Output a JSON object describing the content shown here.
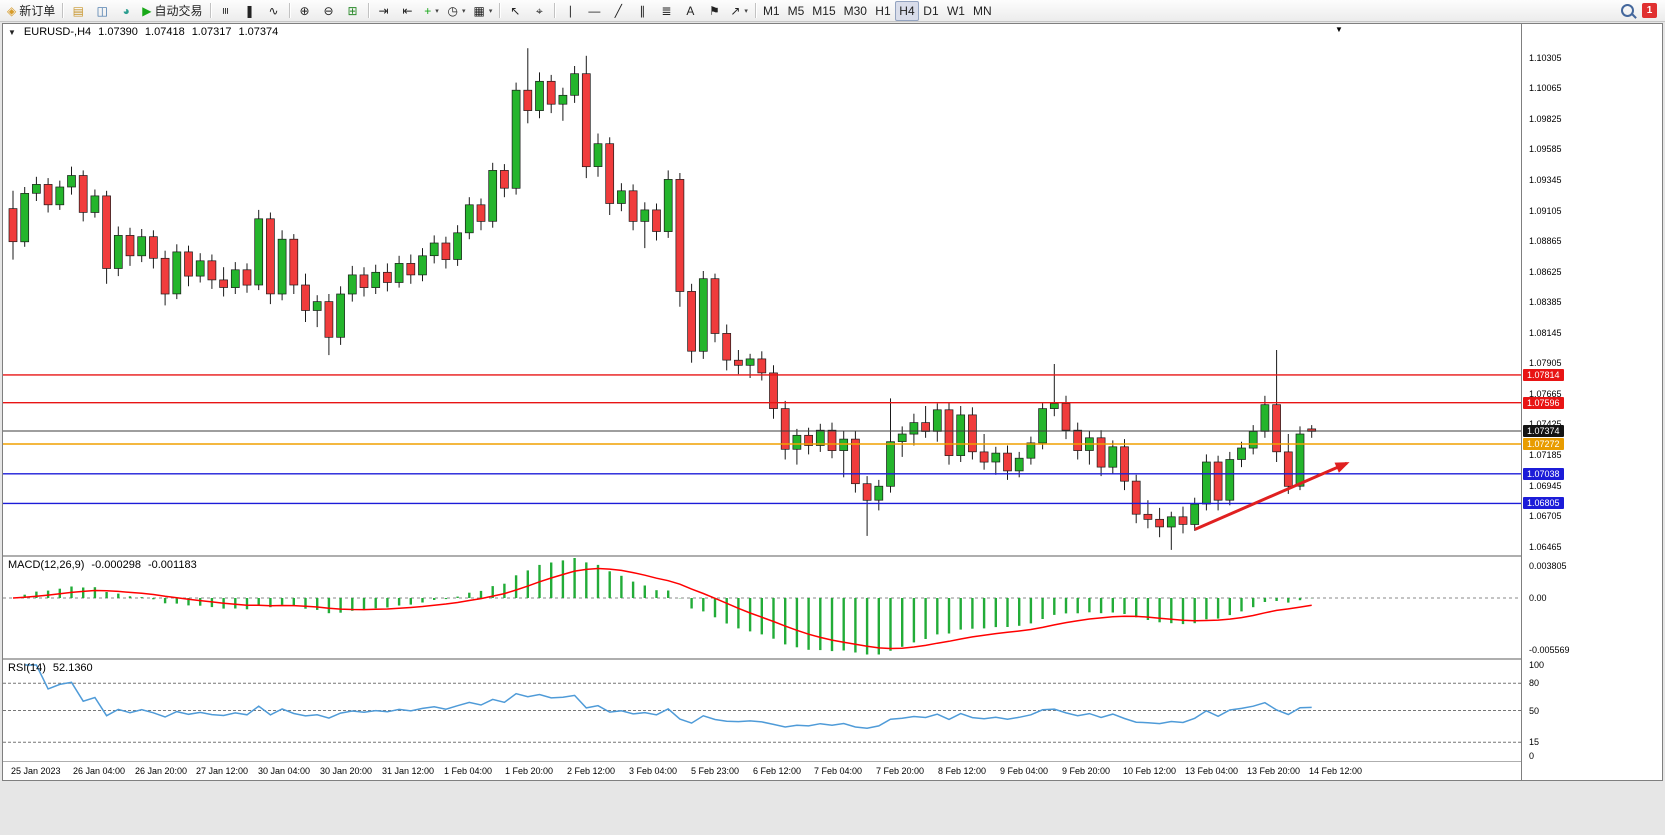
{
  "toolbar": {
    "groups": [
      {
        "items": [
          {
            "name": "new-order-button",
            "glyph": "◈",
            "color": "#d79b28",
            "label": "新订单"
          }
        ]
      },
      {
        "items": [
          {
            "name": "market-watch-button",
            "glyph": "▤",
            "color": "#c8962e"
          },
          {
            "name": "data-window-button",
            "glyph": "◫",
            "color": "#3a6ea5"
          },
          {
            "name": "navigator-button",
            "glyph": "◕",
            "color": "#2a9d8f"
          },
          {
            "name": "auto-trading-button",
            "glyph": "▶",
            "color": "#18a818",
            "label": "自动交易"
          }
        ]
      },
      {
        "items": [
          {
            "name": "bar-chart-button",
            "glyph": "≡"
          },
          {
            "name": "candlestick-chart-button",
            "glyph": "❚"
          },
          {
            "name": "line-chart-button",
            "glyph": "∿"
          }
        ]
      },
      {
        "items": [
          {
            "name": "zoom-in-button",
            "glyph": "⊕"
          },
          {
            "name": "zoom-out-button",
            "glyph": "⊖"
          },
          {
            "name": "tile-windows-button",
            "glyph": "⊞",
            "color": "#2a8a2a"
          }
        ]
      },
      {
        "items": [
          {
            "name": "auto-scroll-button",
            "glyph": "⇥"
          },
          {
            "name": "chart-shift-button",
            "glyph": "⇤"
          },
          {
            "name": "indicators-button",
            "glyph": "+",
            "color": "#18a818",
            "dropdown": true
          },
          {
            "name": "periods-button",
            "glyph": "◷",
            "dropdown": true
          },
          {
            "name": "templates-button",
            "glyph": "▦",
            "dropdown": true
          }
        ]
      },
      {
        "items": [
          {
            "name": "cursor-button",
            "glyph": "↖"
          },
          {
            "name": "crosshair-button",
            "glyph": "⌖"
          }
        ]
      },
      {
        "items": [
          {
            "name": "vertical-line-button",
            "glyph": "∣"
          },
          {
            "name": "horizontal-line-button",
            "glyph": "―"
          },
          {
            "name": "trendline-button",
            "glyph": "╱"
          },
          {
            "name": "channel-button",
            "glyph": "∥"
          },
          {
            "name": "fibonacci-button",
            "glyph": "≣"
          },
          {
            "name": "text-button",
            "glyph": "A"
          },
          {
            "name": "label-button",
            "glyph": "⚑"
          },
          {
            "name": "arrows-button",
            "glyph": "↗",
            "dropdown": true
          }
        ]
      }
    ],
    "timeframes": [
      {
        "label": "M1"
      },
      {
        "label": "M5"
      },
      {
        "label": "M15"
      },
      {
        "label": "M30"
      },
      {
        "label": "H1"
      },
      {
        "label": "H4",
        "active": true
      },
      {
        "label": "D1"
      },
      {
        "label": "W1"
      },
      {
        "label": "MN"
      }
    ],
    "right": {
      "badge_count": "1"
    }
  },
  "chart": {
    "expander_glyph": "▼",
    "scroll_marker_glyph": "▼",
    "header": {
      "symbol": "EURUSD-,H4",
      "open": "1.07390",
      "high": "1.07418",
      "low": "1.07317",
      "close": "1.07374"
    },
    "macd_header": {
      "title": "MACD(12,26,9)",
      "main_value": "-0.000298",
      "signal_value": "-0.001183"
    },
    "rsi_header": {
      "title": "RSI(14)",
      "value": "52.1360"
    },
    "price_axis_labels": [
      "1.10305",
      "1.10065",
      "1.09825",
      "1.09585",
      "1.09345",
      "1.09105",
      "1.08865",
      "1.08625",
      "1.08385",
      "1.08145",
      "1.07905",
      "1.07665",
      "1.07425",
      "1.07185",
      "1.06945",
      "1.06705",
      "1.06465"
    ],
    "time_axis_labels": [
      "25 Jan 2023",
      "26 Jan 04:00",
      "26 Jan 20:00",
      "27 Jan 12:00",
      "30 Jan 04:00",
      "30 Jan 20:00",
      "31 Jan 12:00",
      "1 Feb 04:00",
      "1 Feb 20:00",
      "2 Feb 12:00",
      "3 Feb 04:00",
      "5 Feb 23:00",
      "6 Feb 12:00",
      "7 Feb 04:00",
      "7 Feb 20:00",
      "8 Feb 12:00",
      "9 Feb 04:00",
      "9 Feb 20:00",
      "10 Feb 12:00",
      "13 Feb 04:00",
      "13 Feb 20:00",
      "14 Feb 12:00"
    ],
    "levels": [
      {
        "label": "1.07814",
        "price": 1.07814,
        "color": "#e81414",
        "badge": "#e81414"
      },
      {
        "label": "1.07596",
        "price": 1.07596,
        "color": "#e81414",
        "badge": "#e81414"
      },
      {
        "label": "1.07272",
        "price": 1.07272,
        "color": "#f0a000",
        "badge": "#e89c00"
      },
      {
        "label": "1.07038",
        "price": 1.07038,
        "color": "#1c1cd8",
        "badge": "#1c1cd8"
      },
      {
        "label": "1.06805",
        "price": 1.06805,
        "color": "#1c1cd8",
        "badge": "#1c1cd8"
      },
      {
        "label": "1.07374",
        "price": 1.07374,
        "color": "#3c3c3c",
        "badge": "#141414",
        "is_bid": true
      }
    ],
    "annotation_arrow": {
      "x1_index": 101,
      "y1_price": 1.066,
      "x2_index": 114,
      "y2_price": 1.0712,
      "color": "#e02020"
    }
  },
  "chart_data": {
    "type": "candlestick",
    "symbol": "EURUSD-",
    "timeframe": "H4",
    "price_max": 1.1057,
    "price_min": 1.064,
    "up_color": "#24b52c",
    "down_color": "#f03c3c",
    "candles": [
      [
        1.0912,
        1.0926,
        1.0872,
        1.0886
      ],
      [
        1.0886,
        1.0929,
        1.0882,
        1.0924
      ],
      [
        1.0924,
        1.0937,
        1.0918,
        1.0931
      ],
      [
        1.0931,
        1.0936,
        1.0909,
        1.0915
      ],
      [
        1.0915,
        1.0934,
        1.0911,
        1.0929
      ],
      [
        1.0929,
        1.0945,
        1.0923,
        1.0938
      ],
      [
        1.0938,
        1.0942,
        1.0902,
        1.0909
      ],
      [
        1.0909,
        1.0927,
        1.0905,
        1.0922
      ],
      [
        1.0922,
        1.0926,
        1.0853,
        1.0865
      ],
      [
        1.0865,
        1.0898,
        1.0859,
        1.0891
      ],
      [
        1.0891,
        1.0897,
        1.0867,
        1.0875
      ],
      [
        1.0875,
        1.0896,
        1.087,
        1.089
      ],
      [
        1.089,
        1.0895,
        1.0865,
        1.0873
      ],
      [
        1.0873,
        1.0879,
        1.0836,
        1.0845
      ],
      [
        1.0845,
        1.0884,
        1.0841,
        1.0878
      ],
      [
        1.0878,
        1.0883,
        1.0851,
        1.0859
      ],
      [
        1.0859,
        1.0877,
        1.0854,
        1.0871
      ],
      [
        1.0871,
        1.0876,
        1.0849,
        1.0856
      ],
      [
        1.0856,
        1.0866,
        1.0843,
        1.085
      ],
      [
        1.085,
        1.087,
        1.0845,
        1.0864
      ],
      [
        1.0864,
        1.0869,
        1.0846,
        1.0852
      ],
      [
        1.0852,
        1.0911,
        1.0848,
        1.0904
      ],
      [
        1.0904,
        1.0909,
        1.0837,
        1.0845
      ],
      [
        1.0845,
        1.0895,
        1.084,
        1.0888
      ],
      [
        1.0888,
        1.0892,
        1.0845,
        1.0852
      ],
      [
        1.0852,
        1.0861,
        1.0823,
        1.0832
      ],
      [
        1.0832,
        1.0844,
        1.0819,
        1.0839
      ],
      [
        1.0839,
        1.0845,
        1.0797,
        1.0811
      ],
      [
        1.0811,
        1.0851,
        1.0805,
        1.0845
      ],
      [
        1.0845,
        1.0867,
        1.0839,
        1.086
      ],
      [
        1.086,
        1.0866,
        1.0843,
        1.085
      ],
      [
        1.085,
        1.0868,
        1.0845,
        1.0862
      ],
      [
        1.0862,
        1.0869,
        1.0847,
        1.0854
      ],
      [
        1.0854,
        1.0875,
        1.085,
        1.0869
      ],
      [
        1.0869,
        1.0876,
        1.0853,
        1.086
      ],
      [
        1.086,
        1.0881,
        1.0855,
        1.0875
      ],
      [
        1.0875,
        1.0891,
        1.0869,
        1.0885
      ],
      [
        1.0885,
        1.089,
        1.0865,
        1.0872
      ],
      [
        1.0872,
        1.0899,
        1.0867,
        1.0893
      ],
      [
        1.0893,
        1.0921,
        1.0888,
        1.0915
      ],
      [
        1.0915,
        1.092,
        1.0895,
        1.0902
      ],
      [
        1.0902,
        1.0948,
        1.0897,
        1.0942
      ],
      [
        1.0942,
        1.0947,
        1.0921,
        1.0928
      ],
      [
        1.0928,
        1.1011,
        1.0923,
        1.1005
      ],
      [
        1.1005,
        1.1038,
        1.0979,
        1.0989
      ],
      [
        1.0989,
        1.1019,
        1.0983,
        1.1012
      ],
      [
        1.1012,
        1.1017,
        1.0987,
        1.0994
      ],
      [
        1.0994,
        1.1007,
        1.0981,
        1.1001
      ],
      [
        1.1001,
        1.1024,
        1.0995,
        1.1018
      ],
      [
        1.1018,
        1.1032,
        1.0936,
        1.0945
      ],
      [
        1.0945,
        1.0971,
        1.0937,
        1.0963
      ],
      [
        1.0963,
        1.0968,
        1.0907,
        1.0916
      ],
      [
        1.0916,
        1.0932,
        1.091,
        1.0926
      ],
      [
        1.0926,
        1.0931,
        1.0895,
        1.0902
      ],
      [
        1.0902,
        1.0917,
        1.0881,
        1.0911
      ],
      [
        1.0911,
        1.0916,
        1.0887,
        1.0894
      ],
      [
        1.0894,
        1.0942,
        1.0889,
        1.0935
      ],
      [
        1.0935,
        1.094,
        1.0835,
        1.0847
      ],
      [
        1.0847,
        1.0853,
        1.0791,
        1.08
      ],
      [
        1.08,
        1.0863,
        1.0794,
        1.0857
      ],
      [
        1.0857,
        1.0861,
        1.0807,
        1.0814
      ],
      [
        1.0814,
        1.0821,
        1.0785,
        1.0793
      ],
      [
        1.0793,
        1.0801,
        1.0782,
        1.0789
      ],
      [
        1.0789,
        1.0798,
        1.0779,
        1.0794
      ],
      [
        1.0794,
        1.08,
        1.0777,
        1.0783
      ],
      [
        1.0783,
        1.0789,
        1.0747,
        1.0755
      ],
      [
        1.0755,
        1.0761,
        1.0715,
        1.0723
      ],
      [
        1.0723,
        1.0739,
        1.0711,
        1.0734
      ],
      [
        1.0734,
        1.074,
        1.0719,
        1.0726
      ],
      [
        1.0726,
        1.0743,
        1.0721,
        1.0738
      ],
      [
        1.0738,
        1.0744,
        1.0716,
        1.0722
      ],
      [
        1.0722,
        1.0737,
        1.0701,
        1.0731
      ],
      [
        1.0731,
        1.0737,
        1.0689,
        1.0696
      ],
      [
        1.0696,
        1.0702,
        1.0655,
        1.0683
      ],
      [
        1.0683,
        1.0699,
        1.0675,
        1.0694
      ],
      [
        1.0694,
        1.0763,
        1.0689,
        1.0729
      ],
      [
        1.0729,
        1.0741,
        1.0717,
        1.0735
      ],
      [
        1.0735,
        1.0751,
        1.0726,
        1.0744
      ],
      [
        1.0744,
        1.0757,
        1.0732,
        1.0737
      ],
      [
        1.0737,
        1.0759,
        1.0729,
        1.0754
      ],
      [
        1.0754,
        1.076,
        1.0711,
        1.0718
      ],
      [
        1.0718,
        1.0757,
        1.0713,
        1.075
      ],
      [
        1.075,
        1.0756,
        1.0715,
        1.0721
      ],
      [
        1.0721,
        1.0735,
        1.0707,
        1.0713
      ],
      [
        1.0713,
        1.0725,
        1.0703,
        1.072
      ],
      [
        1.072,
        1.0726,
        1.0699,
        1.0706
      ],
      [
        1.0706,
        1.0721,
        1.0701,
        1.0716
      ],
      [
        1.0716,
        1.0733,
        1.0711,
        1.0728
      ],
      [
        1.0728,
        1.076,
        1.0723,
        1.0755
      ],
      [
        1.0755,
        1.079,
        1.0749,
        1.0759
      ],
      [
        1.0759,
        1.0765,
        1.0731,
        1.0738
      ],
      [
        1.0738,
        1.0744,
        1.0715,
        1.0722
      ],
      [
        1.0722,
        1.0737,
        1.0711,
        1.0732
      ],
      [
        1.0732,
        1.0738,
        1.0702,
        1.0709
      ],
      [
        1.0709,
        1.073,
        1.0704,
        1.0725
      ],
      [
        1.0725,
        1.0731,
        1.0691,
        1.0698
      ],
      [
        1.0698,
        1.0703,
        1.0665,
        1.0672
      ],
      [
        1.0672,
        1.0683,
        1.0661,
        1.0668
      ],
      [
        1.0668,
        1.0677,
        1.0654,
        1.0662
      ],
      [
        1.0662,
        1.0674,
        1.0644,
        1.067
      ],
      [
        1.067,
        1.0678,
        1.0657,
        1.0664
      ],
      [
        1.0664,
        1.0685,
        1.0659,
        1.068
      ],
      [
        1.068,
        1.0719,
        1.0675,
        1.0713
      ],
      [
        1.0713,
        1.0718,
        1.0675,
        1.0683
      ],
      [
        1.0683,
        1.0721,
        1.0679,
        1.0715
      ],
      [
        1.0715,
        1.0729,
        1.0709,
        1.0724
      ],
      [
        1.0724,
        1.0742,
        1.0719,
        1.0737
      ],
      [
        1.0737,
        1.0765,
        1.0732,
        1.0758
      ],
      [
        1.0758,
        1.0801,
        1.0713,
        1.0721
      ],
      [
        1.0721,
        1.0735,
        1.0688,
        1.0694
      ],
      [
        1.0694,
        1.0741,
        1.0691,
        1.0735
      ],
      [
        1.0739,
        1.0742,
        1.0732,
        1.0737
      ]
    ],
    "indicators": {
      "macd": {
        "fast": 12,
        "slow": 26,
        "signal": 9,
        "histogram_color": "#22ac38",
        "signal_color": "#ff0000",
        "range_max": 0.003805,
        "range_min": -0.005569,
        "axis_labels": [
          "0.003805",
          "0.00",
          "-0.005569"
        ]
      },
      "rsi": {
        "period": 14,
        "line_color": "#4f9bd8",
        "levels": [
          80,
          50,
          15
        ],
        "axis_labels": [
          "100",
          "80",
          "50",
          "15",
          "0"
        ]
      }
    }
  }
}
